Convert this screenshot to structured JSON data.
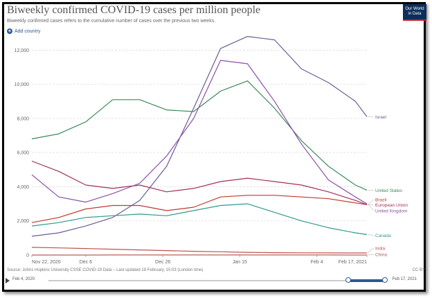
{
  "title": "Biweekly confirmed COVID-19 cases per million people",
  "subtitle": "Biweekly confirmed cases refers to the cumulative number of cases over the previous two weeks.",
  "logo": {
    "line1": "Our World",
    "line2": "in Data"
  },
  "add_country_label": "Add country",
  "footer": {
    "source": "Source: Johns Hopkins University CSSE COVID-19 Data – Last updated 18 February, 15:03 (London time)",
    "license": "CC BY"
  },
  "timeline": {
    "start_label": "Feb 4, 2020",
    "end_label": "Feb 17, 2021",
    "range_start_fraction": 0.89,
    "range_end_fraction": 1.0
  },
  "chart_data": {
    "type": "line",
    "title": "Biweekly confirmed COVID-19 cases per million people",
    "xlabel": "",
    "ylabel": "",
    "x": [
      0,
      7,
      14,
      21,
      28,
      35,
      42,
      49,
      56,
      63,
      70,
      77,
      84,
      87
    ],
    "x_tick_labels": [
      {
        "day": 0,
        "label": "Nov 22, 2020"
      },
      {
        "day": 14,
        "label": "Dec 6"
      },
      {
        "day": 34,
        "label": "Dec 26"
      },
      {
        "day": 54,
        "label": "Jan 15"
      },
      {
        "day": 74,
        "label": "Feb 4"
      },
      {
        "day": 87,
        "label": "Feb 17, 2021"
      }
    ],
    "ylim": [
      0,
      12500
    ],
    "yticks": [
      0,
      2000,
      4000,
      6000,
      8000,
      10000,
      12000
    ],
    "ytick_labels": [
      "0",
      "2,000",
      "4,000",
      "6,000",
      "8,000",
      "10,000",
      "12,000"
    ],
    "grid": true,
    "series": [
      {
        "name": "Israel",
        "color": "#6b5b95",
        "values": [
          1100,
          1300,
          1700,
          2200,
          3200,
          5200,
          8600,
          12100,
          12800,
          12600,
          10900,
          10100,
          9000,
          8100
        ]
      },
      {
        "name": "United States",
        "color": "#3a8a5a",
        "values": [
          6800,
          7100,
          7800,
          9100,
          9100,
          8500,
          8400,
          9600,
          10200,
          8600,
          6700,
          5200,
          4100,
          3800
        ]
      },
      {
        "name": "Brazil",
        "color": "#c0392b",
        "values": [
          1900,
          2200,
          2700,
          2900,
          2900,
          2600,
          2800,
          3400,
          3500,
          3500,
          3400,
          3300,
          3050,
          2950
        ]
      },
      {
        "name": "European Union",
        "color": "#a0305a",
        "values": [
          5500,
          4900,
          4100,
          3900,
          4100,
          3700,
          3900,
          4300,
          4500,
          4300,
          4100,
          3700,
          3200,
          2950
        ]
      },
      {
        "name": "United Kingdom",
        "color": "#8a4fa8",
        "values": [
          4700,
          3400,
          3100,
          3600,
          4200,
          5800,
          8000,
          11400,
          11200,
          9000,
          6500,
          4400,
          3400,
          3000
        ]
      },
      {
        "name": "Canada",
        "color": "#2f9a8a",
        "values": [
          1700,
          1900,
          2200,
          2300,
          2400,
          2300,
          2600,
          2900,
          3000,
          2500,
          2000,
          1600,
          1300,
          1200
        ]
      },
      {
        "name": "India",
        "color": "#c0504d",
        "values": [
          450,
          420,
          380,
          340,
          300,
          260,
          220,
          190,
          160,
          140,
          130,
          125,
          120,
          120
        ]
      },
      {
        "name": "China",
        "color": "#b0605a",
        "values": [
          2,
          2,
          2,
          3,
          3,
          4,
          5,
          6,
          6,
          5,
          4,
          3,
          2,
          2
        ]
      }
    ],
    "end_labels": [
      {
        "series": "Israel",
        "value": 8100
      },
      {
        "series": "United States",
        "value": 3800
      },
      {
        "series": "Brazil",
        "value": 3250
      },
      {
        "series": "European Union",
        "value": 2950
      },
      {
        "series": "United Kingdom",
        "value": 2600
      },
      {
        "series": "Canada",
        "value": 1150
      },
      {
        "series": "India",
        "value": 400
      },
      {
        "series": "China",
        "value": 40
      }
    ]
  }
}
